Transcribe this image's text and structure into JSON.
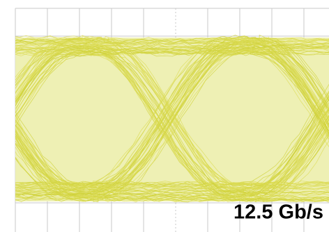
{
  "label": "12.5 Gb/s"
}
